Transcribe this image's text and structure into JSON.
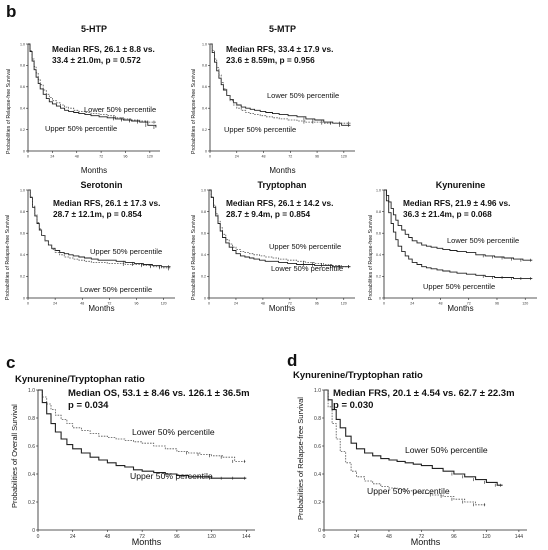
{
  "panel_labels": {
    "b": "b",
    "c": "c",
    "d": "d"
  },
  "chart_data": [
    {
      "id": "5htp",
      "type": "line",
      "title": "5-HTP",
      "xlabel": "Months",
      "ylabel": "Probabilities of Relapse-free Survival",
      "xlim": [
        0,
        130
      ],
      "ylim": [
        0,
        1.0
      ],
      "xticks": [
        "0",
        "24",
        "48",
        "72",
        "96",
        "120"
      ],
      "yticks": [
        "0",
        "0.2",
        "0.4",
        "0.6",
        "0.8",
        "1.0"
      ],
      "annotation": [
        "Median RFS, 26.1 ± 8.8 vs.",
        "33.4 ± 21.0m, p = 0.572"
      ],
      "series": [
        {
          "name": "Lower 50% percentile",
          "style": "dotted",
          "x": [
            0,
            2,
            4,
            6,
            8,
            10,
            12,
            15,
            18,
            21,
            24,
            28,
            32,
            36,
            40,
            45,
            50,
            56,
            62,
            70,
            78,
            86,
            94,
            102,
            110,
            118,
            126
          ],
          "y": [
            1.0,
            0.94,
            0.86,
            0.79,
            0.73,
            0.67,
            0.62,
            0.57,
            0.53,
            0.5,
            0.47,
            0.45,
            0.43,
            0.41,
            0.4,
            0.38,
            0.37,
            0.36,
            0.35,
            0.34,
            0.33,
            0.31,
            0.3,
            0.29,
            0.28,
            0.27,
            0.27
          ]
        },
        {
          "name": "Upper 50% percentile",
          "style": "solid",
          "x": [
            0,
            2,
            4,
            6,
            8,
            10,
            12,
            15,
            18,
            21,
            24,
            28,
            32,
            36,
            40,
            45,
            50,
            56,
            62,
            70,
            78,
            86,
            94,
            102,
            110,
            118,
            126
          ],
          "y": [
            1.0,
            0.93,
            0.84,
            0.76,
            0.69,
            0.63,
            0.58,
            0.53,
            0.49,
            0.46,
            0.44,
            0.42,
            0.4,
            0.38,
            0.37,
            0.36,
            0.35,
            0.34,
            0.33,
            0.32,
            0.31,
            0.3,
            0.29,
            0.28,
            0.27,
            0.24,
            0.22
          ]
        }
      ],
      "labels": [
        "Lower 50% percentile",
        "Upper 50% percentile"
      ]
    },
    {
      "id": "5mtp",
      "type": "line",
      "title": "5-MTP",
      "xlabel": "Months",
      "ylabel": "Probabilities of Relapse-free Survival",
      "xlim": [
        0,
        130
      ],
      "ylim": [
        0,
        1.0
      ],
      "xticks": [
        "0",
        "24",
        "48",
        "72",
        "96",
        "120"
      ],
      "yticks": [
        "0",
        "0.2",
        "0.4",
        "0.6",
        "0.8",
        "1.0"
      ],
      "annotation": [
        "Median RFS, 33.4 ± 17.9 vs.",
        "23.6 ± 8.59m, p = 0.956"
      ],
      "series": [
        {
          "name": "Lower 50% percentile",
          "style": "solid",
          "x": [
            0,
            2,
            4,
            6,
            8,
            10,
            12,
            15,
            18,
            21,
            24,
            28,
            32,
            36,
            40,
            45,
            50,
            56,
            62,
            70,
            78,
            86,
            94,
            102,
            110,
            118,
            126
          ],
          "y": [
            1.0,
            0.92,
            0.83,
            0.75,
            0.68,
            0.62,
            0.57,
            0.52,
            0.48,
            0.45,
            0.43,
            0.41,
            0.4,
            0.39,
            0.38,
            0.37,
            0.36,
            0.35,
            0.34,
            0.33,
            0.32,
            0.3,
            0.29,
            0.27,
            0.26,
            0.24,
            0.24
          ]
        },
        {
          "name": "Upper 50% percentile",
          "style": "dotted",
          "x": [
            0,
            2,
            4,
            6,
            8,
            10,
            12,
            15,
            18,
            21,
            24,
            28,
            32,
            36,
            40,
            45,
            50,
            56,
            62,
            70,
            78,
            86,
            94,
            102,
            110,
            118,
            126
          ],
          "y": [
            1.0,
            0.94,
            0.86,
            0.78,
            0.71,
            0.64,
            0.58,
            0.52,
            0.47,
            0.43,
            0.4,
            0.38,
            0.36,
            0.35,
            0.34,
            0.33,
            0.32,
            0.31,
            0.3,
            0.29,
            0.28,
            0.27,
            0.27,
            0.26,
            0.26,
            0.26,
            0.26
          ]
        }
      ],
      "labels": [
        "Lower 50% percentile",
        "Upper 50% percentile"
      ]
    },
    {
      "id": "serotonin",
      "type": "line",
      "title": "Serotonin",
      "xlabel": "Months",
      "ylabel": "Probabilities of Relapse-free Survival",
      "xlim": [
        0,
        130
      ],
      "ylim": [
        0,
        1.0
      ],
      "xticks": [
        "0",
        "24",
        "48",
        "72",
        "96",
        "120"
      ],
      "yticks": [
        "0",
        "0.2",
        "0.4",
        "0.6",
        "0.8",
        "1.0"
      ],
      "annotation": [
        "Median RFS, 26.1 ± 17.3 vs.",
        "28.7 ± 12.1m, p = 0.854"
      ],
      "series": [
        {
          "name": "Upper 50% percentile",
          "style": "solid",
          "x": [
            0,
            2,
            4,
            6,
            8,
            10,
            12,
            15,
            18,
            21,
            24,
            28,
            32,
            36,
            40,
            45,
            50,
            56,
            62,
            70,
            78,
            86,
            94,
            102,
            110,
            118,
            126
          ],
          "y": [
            1.0,
            0.93,
            0.84,
            0.76,
            0.69,
            0.63,
            0.58,
            0.53,
            0.49,
            0.46,
            0.44,
            0.42,
            0.41,
            0.4,
            0.39,
            0.38,
            0.37,
            0.36,
            0.35,
            0.35,
            0.34,
            0.33,
            0.32,
            0.31,
            0.3,
            0.29,
            0.29
          ]
        },
        {
          "name": "Lower 50% percentile",
          "style": "dotted",
          "x": [
            0,
            2,
            4,
            6,
            8,
            10,
            12,
            15,
            18,
            21,
            24,
            28,
            32,
            36,
            40,
            45,
            50,
            56,
            62,
            70,
            78,
            86,
            94,
            102,
            110,
            118,
            126
          ],
          "y": [
            1.0,
            0.94,
            0.85,
            0.77,
            0.7,
            0.64,
            0.58,
            0.53,
            0.49,
            0.45,
            0.42,
            0.4,
            0.38,
            0.37,
            0.36,
            0.35,
            0.34,
            0.33,
            0.33,
            0.32,
            0.32,
            0.31,
            0.31,
            0.3,
            0.29,
            0.28,
            0.27
          ]
        }
      ],
      "labels": [
        "Upper 50% percentile",
        "Lower 50% percentile"
      ]
    },
    {
      "id": "tryptophan",
      "type": "line",
      "title": "Tryptophan",
      "xlabel": "Months",
      "ylabel": "Probabilities of Relapse-free Survival",
      "xlim": [
        0,
        130
      ],
      "ylim": [
        0,
        1.0
      ],
      "xticks": [
        "0",
        "24",
        "48",
        "72",
        "96",
        "120"
      ],
      "yticks": [
        "0",
        "0.2",
        "0.4",
        "0.6",
        "0.8",
        "1.0"
      ],
      "annotation": [
        "Median RFS, 26.1 ± 14.2 vs.",
        "28.7 ± 9.4m, p = 0.854"
      ],
      "series": [
        {
          "name": "Upper 50% percentile",
          "style": "dotted",
          "x": [
            0,
            2,
            4,
            6,
            8,
            10,
            12,
            15,
            18,
            21,
            24,
            28,
            32,
            36,
            40,
            45,
            50,
            56,
            62,
            70,
            78,
            86,
            94,
            102,
            110,
            118,
            126
          ],
          "y": [
            1.0,
            0.94,
            0.86,
            0.78,
            0.71,
            0.65,
            0.59,
            0.54,
            0.5,
            0.47,
            0.45,
            0.43,
            0.42,
            0.41,
            0.4,
            0.39,
            0.38,
            0.37,
            0.36,
            0.35,
            0.34,
            0.33,
            0.32,
            0.31,
            0.3,
            0.29,
            0.29
          ]
        },
        {
          "name": "Lower 50% percentile",
          "style": "solid",
          "x": [
            0,
            2,
            4,
            6,
            8,
            10,
            12,
            15,
            18,
            21,
            24,
            28,
            32,
            36,
            40,
            45,
            50,
            56,
            62,
            70,
            78,
            86,
            94,
            102,
            110,
            118,
            126
          ],
          "y": [
            1.0,
            0.93,
            0.84,
            0.76,
            0.69,
            0.62,
            0.56,
            0.51,
            0.47,
            0.44,
            0.41,
            0.39,
            0.38,
            0.37,
            0.36,
            0.35,
            0.34,
            0.34,
            0.33,
            0.32,
            0.31,
            0.31,
            0.3,
            0.3,
            0.29,
            0.29,
            0.29
          ]
        }
      ],
      "labels": [
        "Upper 50% percentile",
        "Lower 50% percentile"
      ]
    },
    {
      "id": "kynurenine",
      "type": "line",
      "title": "Kynurenine",
      "xlabel": "Months",
      "ylabel": "Probabilities of Relapse-free Survival",
      "xlim": [
        0,
        130
      ],
      "ylim": [
        0,
        1.0
      ],
      "xticks": [
        "0",
        "24",
        "48",
        "72",
        "96",
        "120"
      ],
      "yticks": [
        "0",
        "0.2",
        "0.4",
        "0.6",
        "0.8",
        "1.0"
      ],
      "annotation": [
        "Median RFS, 21.9 ± 4.96 vs.",
        "36.3 ± 21.4m, p = 0.068"
      ],
      "series": [
        {
          "name": "Lower 50% percentile",
          "style": "solid",
          "x": [
            0,
            2,
            4,
            6,
            8,
            10,
            12,
            15,
            18,
            21,
            24,
            28,
            32,
            36,
            40,
            45,
            50,
            56,
            62,
            70,
            78,
            86,
            94,
            102,
            110,
            118,
            126
          ],
          "y": [
            1.0,
            0.95,
            0.89,
            0.83,
            0.77,
            0.72,
            0.67,
            0.63,
            0.59,
            0.56,
            0.53,
            0.51,
            0.49,
            0.48,
            0.47,
            0.46,
            0.45,
            0.44,
            0.43,
            0.42,
            0.4,
            0.39,
            0.38,
            0.37,
            0.36,
            0.35,
            0.35
          ]
        },
        {
          "name": "Upper 50% percentile",
          "style": "solid",
          "x": [
            0,
            2,
            4,
            6,
            8,
            10,
            12,
            15,
            18,
            21,
            24,
            28,
            32,
            36,
            40,
            45,
            50,
            56,
            62,
            70,
            78,
            86,
            94,
            102,
            110,
            118,
            126
          ],
          "y": [
            1.0,
            0.9,
            0.79,
            0.69,
            0.61,
            0.54,
            0.48,
            0.43,
            0.39,
            0.36,
            0.33,
            0.31,
            0.29,
            0.28,
            0.27,
            0.26,
            0.25,
            0.24,
            0.23,
            0.22,
            0.21,
            0.2,
            0.19,
            0.19,
            0.18,
            0.18,
            0.18
          ]
        }
      ],
      "labels": [
        "Lower 50% percentile",
        "Upper 50% percentile"
      ]
    },
    {
      "id": "c",
      "type": "line",
      "title": "Kynurenine/Tryptophan ratio",
      "xlabel": "Months",
      "ylabel": "Probabilities of Overall Survival",
      "xlim": [
        0,
        150
      ],
      "ylim": [
        0,
        1.0
      ],
      "xticks": [
        "0",
        "24",
        "48",
        "72",
        "96",
        "120",
        "144"
      ],
      "yticks": [
        "0",
        "0.2",
        "0.4",
        "0.6",
        "0.8",
        "1.0"
      ],
      "annotation": [
        "Median OS, 53.1 ± 8.46 vs. 126.1 ± 36.5m",
        "p = 0.034"
      ],
      "series": [
        {
          "name": "Lower 50% percentile",
          "style": "dotted",
          "x": [
            0,
            3,
            6,
            9,
            12,
            16,
            20,
            24,
            30,
            36,
            42,
            48,
            54,
            60,
            66,
            72,
            80,
            88,
            96,
            104,
            112,
            120,
            128,
            136,
            144
          ],
          "y": [
            1.0,
            0.95,
            0.9,
            0.86,
            0.82,
            0.79,
            0.76,
            0.73,
            0.71,
            0.69,
            0.67,
            0.66,
            0.65,
            0.64,
            0.63,
            0.62,
            0.6,
            0.58,
            0.56,
            0.55,
            0.54,
            0.53,
            0.52,
            0.49,
            0.49
          ]
        },
        {
          "name": "Upper 50% percentile",
          "style": "solid",
          "x": [
            0,
            3,
            6,
            9,
            12,
            16,
            20,
            24,
            30,
            36,
            42,
            48,
            54,
            60,
            66,
            72,
            80,
            88,
            96,
            104,
            112,
            120,
            128,
            136,
            144
          ],
          "y": [
            1.0,
            0.91,
            0.83,
            0.76,
            0.7,
            0.65,
            0.61,
            0.58,
            0.55,
            0.52,
            0.5,
            0.48,
            0.46,
            0.45,
            0.43,
            0.42,
            0.41,
            0.4,
            0.39,
            0.38,
            0.38,
            0.37,
            0.37,
            0.37,
            0.37
          ]
        }
      ],
      "labels": [
        "Lower 50% percentile",
        "Upper 50% percentile"
      ]
    },
    {
      "id": "d",
      "type": "line",
      "title": "Kynurenine/Tryptophan ratio",
      "xlabel": "Months",
      "ylabel": "Probabilities of Relapse-free Survival",
      "xlim": [
        0,
        150
      ],
      "ylim": [
        0,
        1.0
      ],
      "xticks": [
        "0",
        "24",
        "48",
        "72",
        "96",
        "120",
        "144"
      ],
      "yticks": [
        "0",
        "0.2",
        "0.4",
        "0.6",
        "0.8",
        "1.0"
      ],
      "annotation": [
        "Median FRS, 20.1 ± 4.54 vs. 62.7 ± 22.3m",
        "p = 0.030"
      ],
      "series": [
        {
          "name": "Lower 50% percentile",
          "style": "solid",
          "x": [
            0,
            3,
            6,
            9,
            12,
            16,
            20,
            24,
            30,
            36,
            42,
            48,
            54,
            60,
            66,
            72,
            80,
            88,
            96,
            104,
            112,
            120,
            128,
            132
          ],
          "y": [
            1.0,
            0.93,
            0.86,
            0.79,
            0.73,
            0.67,
            0.62,
            0.58,
            0.55,
            0.53,
            0.51,
            0.5,
            0.49,
            0.48,
            0.47,
            0.46,
            0.44,
            0.42,
            0.4,
            0.38,
            0.36,
            0.34,
            0.32,
            0.32
          ]
        },
        {
          "name": "Upper 50% percentile",
          "style": "dotted",
          "x": [
            0,
            3,
            6,
            9,
            12,
            16,
            20,
            24,
            30,
            36,
            42,
            48,
            54,
            60,
            66,
            72,
            80,
            88,
            96,
            104,
            112,
            120
          ],
          "y": [
            1.0,
            0.88,
            0.76,
            0.65,
            0.56,
            0.48,
            0.42,
            0.38,
            0.35,
            0.33,
            0.31,
            0.3,
            0.29,
            0.28,
            0.27,
            0.26,
            0.25,
            0.24,
            0.22,
            0.2,
            0.18,
            0.18
          ]
        }
      ],
      "labels": [
        "Lower 50% percentile",
        "Upper 50% percentile"
      ]
    }
  ]
}
